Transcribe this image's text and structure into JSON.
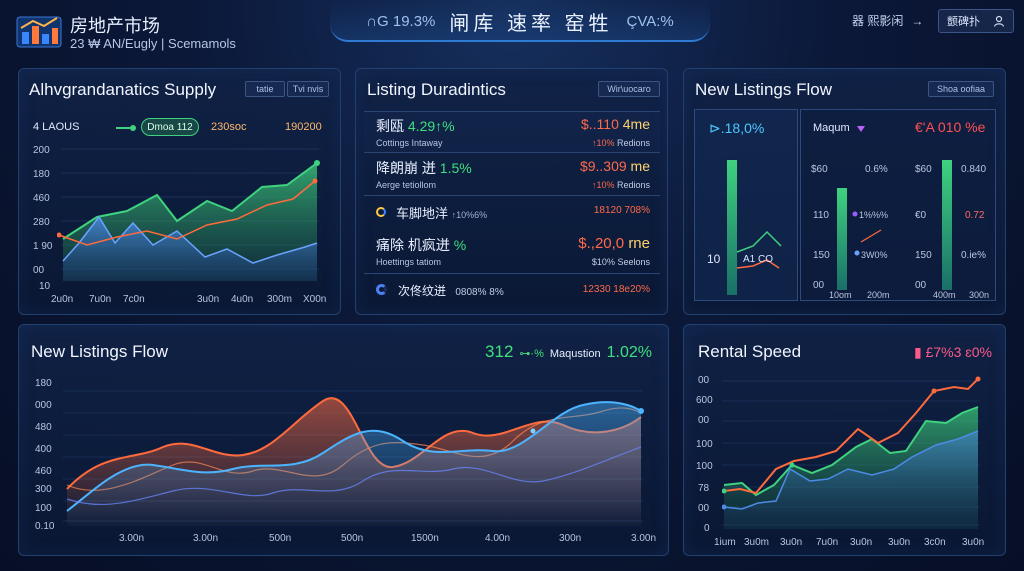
{
  "header": {
    "brand_title": "房地产市场",
    "brand_subtitle": "23 ₩ AN/Eugly | Scemamols",
    "center_left": "∩G 19.3%",
    "center_main": "闸库 速率 窑牲",
    "center_right": "ÇVA:%",
    "link_label": "器 熙影闲",
    "link_arrow": "→",
    "user_label": "颤碑扑",
    "user_icon": "user-icon"
  },
  "supply_panel": {
    "title": "Alhvgrandanatics Supply",
    "tag_left": "tatie",
    "tag_right": "Tvi nvis",
    "stat_left": "4 LAOUS",
    "pill_label": "Dmoa 112",
    "stat_mid": "230soc",
    "stat_right": "190200",
    "y_labels": [
      "200",
      "180",
      "460",
      "280",
      "1 90",
      "00",
      "10"
    ],
    "x_labels": [
      "2u0n",
      "7u0n",
      "7c0n",
      "3u0n",
      "4u0n",
      "300m",
      "X00n"
    ],
    "colors": {
      "green": "#3fd27f",
      "blue": "#4c8be6",
      "orange": "#ff6a3d"
    }
  },
  "dynamics_panel": {
    "title": "Listing Duradintics",
    "tag": "Wir\\uocaro",
    "rows": [
      {
        "name": "剩瓯",
        "pct": "4.29↑%",
        "sub": "Cottings Intaway",
        "val": "$..110",
        "val_pct": "4me",
        "sub2": "↑10%",
        "sub2b": "Redions"
      },
      {
        "name": "降朗崩 迸",
        "pct": "1.5%",
        "sub": "Aerge tetiollom",
        "val": "$9..309",
        "val_pct": "me",
        "sub2": "↑10%",
        "sub2b": "Redions"
      },
      {
        "name": "车脚地洋",
        "pct": "↑10%6%",
        "sub": "",
        "val": "18120",
        "val_pct": "708%",
        "sub2": "",
        "sub2b": ""
      },
      {
        "name": "痛除 机疯迸",
        "pct": "%",
        "sub": "Hoettings tatiom",
        "val": "$.,20,0",
        "val_pct": "rne",
        "sub2": "$10%",
        "sub2b": "Seelons"
      },
      {
        "name": "次佟纹迸",
        "pct": "",
        "sub": "",
        "val": "12330",
        "val_pct": "18e20%",
        "sub2": "",
        "sub2b": ""
      }
    ],
    "row_small": "0808% 8%"
  },
  "flow_small_panel": {
    "title": "New Listings Flow",
    "tag": "Shoa oofiaa",
    "left_stat": "⊳.18,0%",
    "left_bottom": "10",
    "left_bottom2": "A1 CO",
    "mid_label": "Maqum",
    "right_stat": "€'A 010 %e",
    "bars": [
      {
        "y_top": "$60",
        "y_mid": "110",
        "y_bot": "150",
        "y_min": "00",
        "label": "0.6%",
        "label2": "1%%%",
        "label3": "3W0%",
        "x": "10om",
        "x2": "200m"
      },
      {
        "y_top": "$60",
        "y_mid": "€0",
        "y_bot": "150",
        "y_min": "00",
        "label": "0.840",
        "label2": "0.72",
        "label3": "0.ie%",
        "x": "400m",
        "x2": "300n"
      }
    ]
  },
  "flow_large_panel": {
    "title": "New Listings Flow",
    "stat_num": "312",
    "stat_pct": "⊶·%",
    "stat_label": "Maqustion",
    "stat_pct2": "1.02%",
    "y_labels": [
      "180",
      "000",
      "480",
      "400",
      "460",
      "300",
      "100",
      "0.10"
    ],
    "x_labels": [
      "3.00n",
      "3.00n",
      "500n",
      "500n",
      "1500n",
      "4.00n",
      "300n",
      "3.00n"
    ]
  },
  "rental_panel": {
    "title": "Rental Speed",
    "stat": "▮ £7%3 ɛ0%",
    "y_labels": [
      "00",
      "600",
      "00",
      "100",
      "100",
      "78",
      "00",
      "0"
    ],
    "x_labels": [
      "1ium",
      "3u0m",
      "3u0n",
      "7u0n",
      "3u0n",
      "3u0n",
      "3c0n",
      "3u0n"
    ]
  }
}
